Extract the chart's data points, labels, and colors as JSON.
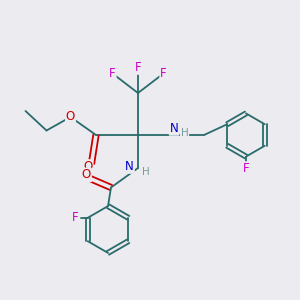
{
  "background_color": "#ebebf0",
  "colors": {
    "C": "#2a6b6b",
    "O": "#cc0000",
    "N": "#0000cc",
    "F": "#cc00cc",
    "H": "#7a9a9a",
    "bond": "#2a6b6b"
  },
  "figsize": [
    3.0,
    3.0
  ],
  "dpi": 100
}
